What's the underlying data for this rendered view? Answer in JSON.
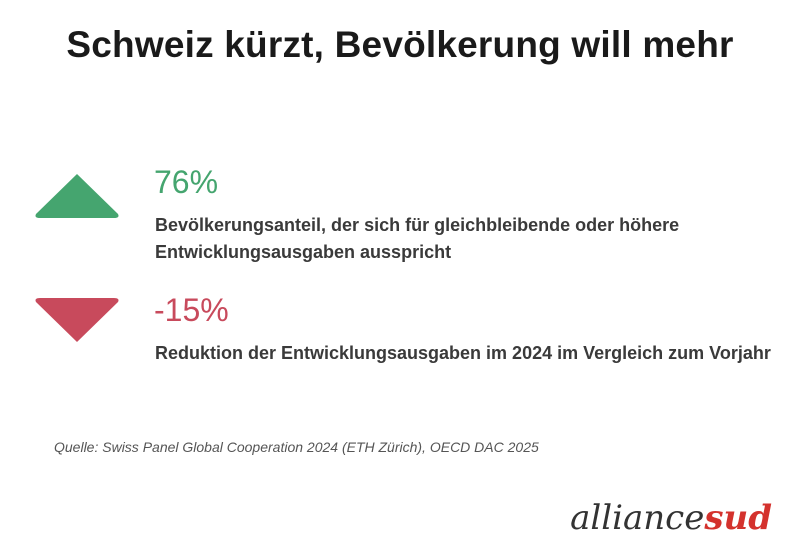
{
  "title": "Schweiz kürzt, Bevölkerung will mehr",
  "stats": [
    {
      "value": "76%",
      "description": "Bevölkerungsanteil, der sich für gleichbleibende oder höhere Entwicklungsausgaben ausspricht",
      "direction": "up",
      "icon": "triangle-up-icon",
      "color": "#45a56f"
    },
    {
      "value": "-15%",
      "description": "Reduktion der Entwicklungsausgaben im 2024 im Vergleich zum Vorjahr",
      "direction": "down",
      "icon": "triangle-down-icon",
      "color": "#c84a5c"
    }
  ],
  "source": "Quelle: Swiss Panel Global Cooperation 2024 (ETH Zürich), OECD DAC 2025",
  "logo": {
    "part1": "alliance",
    "part2": "sud",
    "color1": "#333333",
    "color2": "#d4322d"
  }
}
